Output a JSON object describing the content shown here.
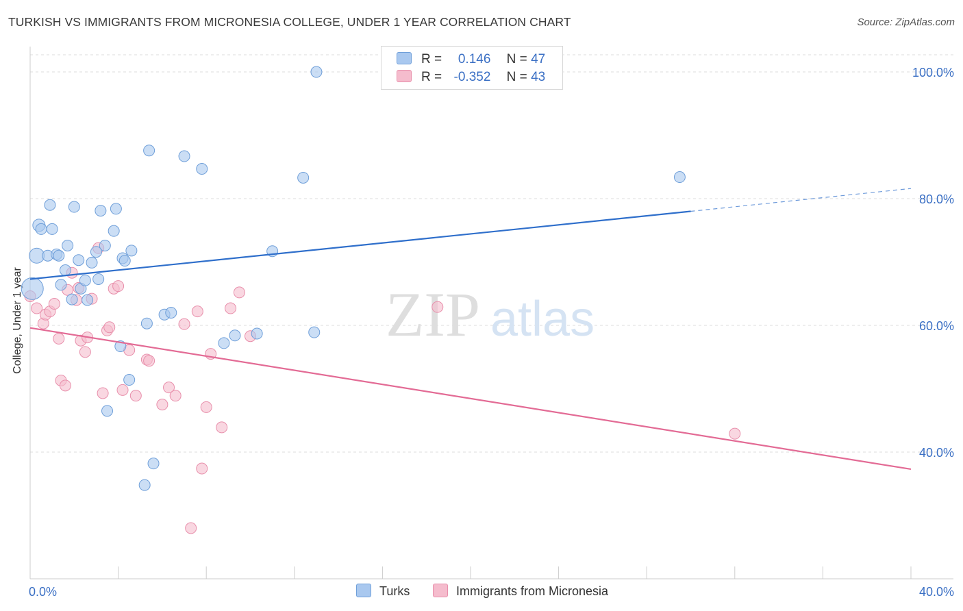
{
  "title": "TURKISH VS IMMIGRANTS FROM MICRONESIA COLLEGE, UNDER 1 YEAR CORRELATION CHART",
  "source": "Source: ZipAtlas.com",
  "watermark": {
    "zip": "ZIP",
    "atlas": "atlas"
  },
  "legend": {
    "turks": {
      "r_label": "R =",
      "r_value": "0.146",
      "n_label": "N =",
      "n_value": "47"
    },
    "micronesia": {
      "r_label": "R =",
      "r_value": "-0.352",
      "n_label": "N =",
      "n_value": "43"
    }
  },
  "colors": {
    "turks_fill": "#a9c8ef",
    "turks_stroke": "#6f9fd9",
    "turks_line": "#2f6fcb",
    "micro_fill": "#f5bccd",
    "micro_stroke": "#e88fab",
    "micro_line": "#e36b95",
    "axis_text": "#3a6fc4",
    "grid": "#dddddd"
  },
  "chart_data": {
    "type": "scatter",
    "title": "TURKISH VS IMMIGRANTS FROM MICRONESIA COLLEGE, UNDER 1 YEAR CORRELATION CHART",
    "xlabel": "",
    "ylabel": "College, Under 1 year",
    "xlim": [
      0,
      40
    ],
    "ylim": [
      20,
      104
    ],
    "x_tick_labels": [
      "0.0%",
      "40.0%"
    ],
    "y_ticks": [
      40,
      60,
      80,
      100
    ],
    "y_tick_labels": [
      "40.0%",
      "60.0%",
      "80.0%",
      "100.0%"
    ],
    "legend_position": "bottom-center",
    "series": [
      {
        "name": "Turks",
        "r": 0.146,
        "n": 47,
        "trend": {
          "x0": 0,
          "y0": 67.3,
          "x1": 30.0,
          "y1": 78.0,
          "dashed_to_x": 40,
          "dashed_to_y": 81.6
        },
        "points": [
          [
            0.1,
            65.8,
            16
          ],
          [
            0.3,
            71.0,
            11
          ],
          [
            0.4,
            75.8,
            9
          ],
          [
            0.5,
            75.2,
            8
          ],
          [
            0.8,
            71.0,
            8
          ],
          [
            0.9,
            79.0,
            8
          ],
          [
            1.0,
            75.2,
            8
          ],
          [
            1.2,
            71.2,
            8
          ],
          [
            1.3,
            71.0,
            8
          ],
          [
            1.4,
            66.4,
            8
          ],
          [
            1.6,
            68.7,
            8
          ],
          [
            1.7,
            72.6,
            8
          ],
          [
            1.9,
            64.1,
            8
          ],
          [
            2.0,
            78.7,
            8
          ],
          [
            2.2,
            70.3,
            8
          ],
          [
            2.3,
            65.8,
            8
          ],
          [
            2.5,
            67.1,
            8
          ],
          [
            2.6,
            64.0,
            8
          ],
          [
            2.8,
            69.9,
            8
          ],
          [
            3.0,
            71.6,
            8
          ],
          [
            3.1,
            67.3,
            8
          ],
          [
            3.2,
            78.1,
            8
          ],
          [
            3.4,
            72.6,
            8
          ],
          [
            3.8,
            74.9,
            8
          ],
          [
            3.9,
            78.4,
            8
          ],
          [
            4.1,
            56.7,
            8
          ],
          [
            4.2,
            70.6,
            8
          ],
          [
            4.3,
            70.2,
            8
          ],
          [
            4.5,
            51.4,
            8
          ],
          [
            4.6,
            71.8,
            8
          ],
          [
            3.5,
            46.5,
            8
          ],
          [
            5.2,
            34.8,
            8
          ],
          [
            5.3,
            60.3,
            8
          ],
          [
            5.4,
            87.6,
            8
          ],
          [
            5.6,
            38.2,
            8
          ],
          [
            6.1,
            61.7,
            8
          ],
          [
            6.4,
            62.0,
            8
          ],
          [
            7.0,
            86.7,
            8
          ],
          [
            7.8,
            84.7,
            8
          ],
          [
            8.8,
            57.2,
            8
          ],
          [
            9.3,
            58.4,
            8
          ],
          [
            10.3,
            58.7,
            8
          ],
          [
            11.0,
            71.7,
            8
          ],
          [
            12.4,
            83.3,
            8
          ],
          [
            12.9,
            58.9,
            8
          ],
          [
            13.0,
            100.0,
            8
          ],
          [
            29.5,
            83.4,
            8
          ]
        ]
      },
      {
        "name": "Immigrants from Micronesia",
        "r": -0.352,
        "n": 43,
        "trend": {
          "x0": 0,
          "y0": 59.6,
          "x1": 40,
          "y1": 37.3
        },
        "points": [
          [
            0.0,
            64.6,
            8
          ],
          [
            0.3,
            62.7,
            8
          ],
          [
            0.6,
            60.3,
            8
          ],
          [
            0.7,
            61.7,
            8
          ],
          [
            0.9,
            62.2,
            8
          ],
          [
            1.1,
            63.4,
            8
          ],
          [
            1.3,
            57.9,
            8
          ],
          [
            1.4,
            51.3,
            8
          ],
          [
            1.6,
            50.5,
            8
          ],
          [
            1.7,
            65.6,
            8
          ],
          [
            1.9,
            68.3,
            8
          ],
          [
            2.1,
            64.0,
            8
          ],
          [
            2.2,
            65.9,
            8
          ],
          [
            2.3,
            57.6,
            8
          ],
          [
            2.5,
            55.8,
            8
          ],
          [
            2.6,
            58.1,
            8
          ],
          [
            2.8,
            64.2,
            8
          ],
          [
            3.1,
            72.2,
            8
          ],
          [
            3.3,
            49.3,
            8
          ],
          [
            3.5,
            59.2,
            8
          ],
          [
            3.6,
            59.7,
            8
          ],
          [
            3.8,
            65.8,
            8
          ],
          [
            4.0,
            66.2,
            8
          ],
          [
            4.2,
            49.8,
            8
          ],
          [
            4.5,
            56.1,
            8
          ],
          [
            4.8,
            48.9,
            8
          ],
          [
            5.3,
            54.6,
            8
          ],
          [
            5.4,
            54.4,
            8
          ],
          [
            6.0,
            47.5,
            8
          ],
          [
            6.3,
            50.2,
            8
          ],
          [
            6.6,
            48.9,
            8
          ],
          [
            7.0,
            60.2,
            8
          ],
          [
            7.3,
            28.0,
            8
          ],
          [
            7.6,
            62.2,
            8
          ],
          [
            7.8,
            37.4,
            8
          ],
          [
            8.0,
            47.1,
            8
          ],
          [
            8.2,
            55.5,
            8
          ],
          [
            8.7,
            43.9,
            8
          ],
          [
            9.1,
            62.7,
            8
          ],
          [
            9.5,
            65.2,
            8
          ],
          [
            10.0,
            58.3,
            8
          ],
          [
            18.5,
            62.9,
            8
          ],
          [
            32.0,
            42.9,
            8
          ]
        ]
      }
    ]
  }
}
